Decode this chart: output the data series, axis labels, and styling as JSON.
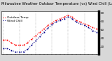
{
  "title": "Milwaukee Weather Outdoor Temperature (vs) Wind Chill (Last 24 Hours)",
  "outdoor_temp": [
    28,
    28,
    25,
    22,
    22,
    22,
    25,
    29,
    33,
    37,
    41,
    45,
    48,
    51,
    53,
    55,
    57,
    55,
    51,
    49,
    47,
    45,
    43,
    41
  ],
  "wind_chill": [
    18,
    18,
    16,
    14,
    14,
    14,
    17,
    22,
    27,
    32,
    37,
    42,
    46,
    49,
    51,
    53,
    55,
    53,
    49,
    47,
    45,
    43,
    39,
    37
  ],
  "x_labels": [
    "",
    "",
    "",
    "",
    "",
    "",
    "",
    "",
    "",
    "",
    "",
    "",
    "",
    "",
    "",
    "",
    "",
    "",
    "",
    "",
    "",
    "",
    "",
    ""
  ],
  "ylim": [
    12,
    62
  ],
  "ytick_vals": [
    20,
    30,
    40,
    50,
    60
  ],
  "ytick_labels": [
    "20",
    "30",
    "40",
    "50",
    "60"
  ],
  "bg_color": "#d8d8d8",
  "plot_bg": "#ffffff",
  "outdoor_color": "#ff0000",
  "windchill_color": "#00008b",
  "legend_outdoor": "Outdoor Temp",
  "legend_windchill": "Wind Chill",
  "grid_color": "#999999",
  "title_fontsize": 3.8,
  "tick_fontsize": 3.0,
  "legend_fontsize": 3.2,
  "right_bar_color": "#000000",
  "n_gridlines": 6
}
